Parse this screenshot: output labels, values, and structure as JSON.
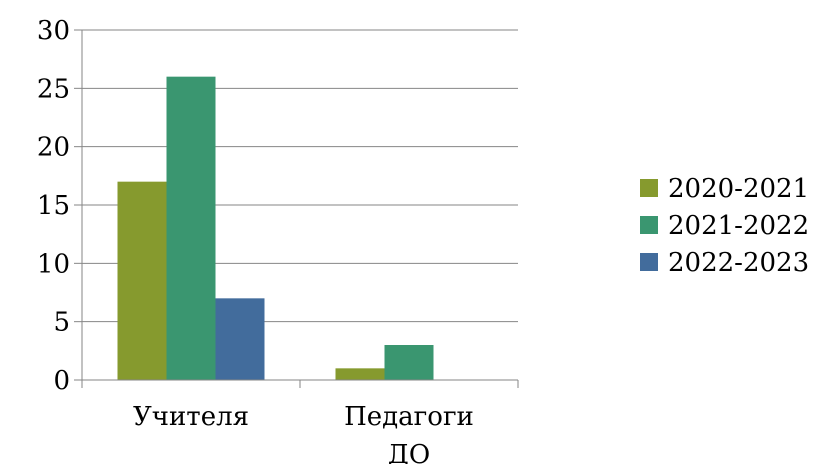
{
  "chart_data": {
    "type": "bar",
    "categories": [
      "Учителя",
      "Педагоги ДО"
    ],
    "category_lines": [
      [
        "Учителя"
      ],
      [
        "Педагоги",
        "ДО"
      ]
    ],
    "series": [
      {
        "name": "2020-2021",
        "values": [
          17,
          1
        ],
        "color": "#869A2E"
      },
      {
        "name": "2021-2022",
        "values": [
          26,
          3
        ],
        "color": "#3A9670"
      },
      {
        "name": "2022-2023",
        "values": [
          7,
          0
        ],
        "color": "#426C9C"
      }
    ],
    "ylim": [
      0,
      30
    ],
    "yticks": [
      0,
      5,
      10,
      15,
      20,
      25,
      30
    ],
    "grid": true,
    "legend_position": "right"
  }
}
